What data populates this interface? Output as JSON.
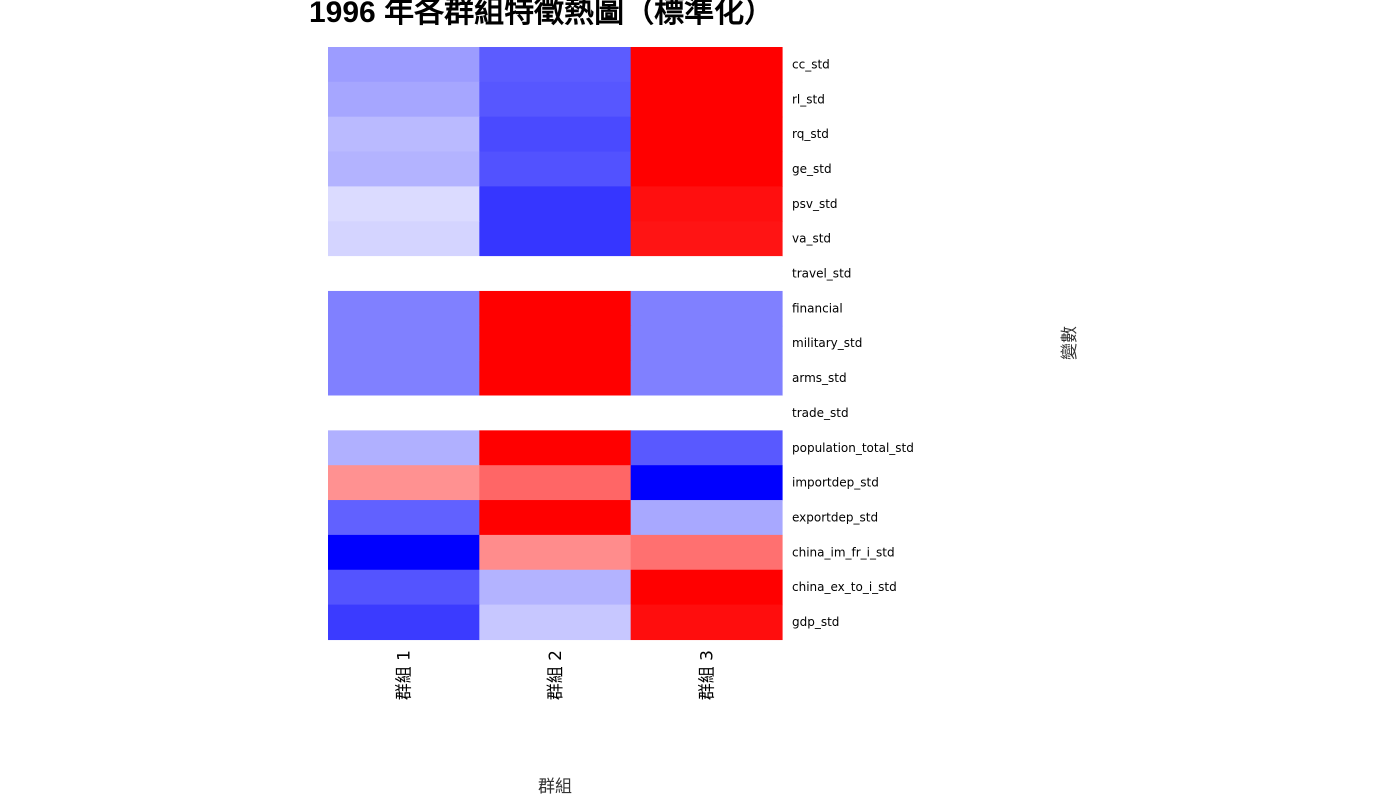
{
  "chart_data": {
    "type": "heatmap",
    "title": "1996 年各群組特徵熱圖（標準化）",
    "xlabel": "群組",
    "ylabel": "變數",
    "columns": [
      "群組 1",
      "群組 2",
      "群組 3"
    ],
    "rows": [
      "cc_std",
      "rl_std",
      "rq_std",
      "ge_std",
      "psv_std",
      "va_std",
      "travel_std",
      "financial",
      "military_std",
      "arms_std",
      "trade_std",
      "population_total_std",
      "importdep_std",
      "exportdep_std",
      "china_im_fr_i_std",
      "china_ex_to_i_std",
      "gdp_std"
    ],
    "values": [
      [
        -0.39,
        -0.64,
        1.0
      ],
      [
        -0.35,
        -0.66,
        1.0
      ],
      [
        -0.27,
        -0.71,
        1.0
      ],
      [
        -0.3,
        -0.68,
        1.0
      ],
      [
        -0.14,
        -0.79,
        0.94
      ],
      [
        -0.17,
        -0.79,
        0.92
      ],
      [
        0,
        0,
        0
      ],
      [
        -0.5,
        1.0,
        -0.5
      ],
      [
        -0.5,
        1.0,
        -0.5
      ],
      [
        -0.5,
        1.0,
        -0.5
      ],
      [
        0,
        0,
        0
      ],
      [
        -0.31,
        1.0,
        -0.65
      ],
      [
        0.43,
        0.6,
        -1.0
      ],
      [
        -0.62,
        1.0,
        -0.34
      ],
      [
        -1.0,
        0.45,
        0.56
      ],
      [
        -0.67,
        -0.3,
        1.0
      ],
      [
        -0.77,
        -0.22,
        0.95
      ]
    ],
    "color_scale": {
      "low": "#0000ff",
      "mid": "#ffffff",
      "high": "#ff0000"
    },
    "value_range": [
      -1,
      1
    ]
  }
}
